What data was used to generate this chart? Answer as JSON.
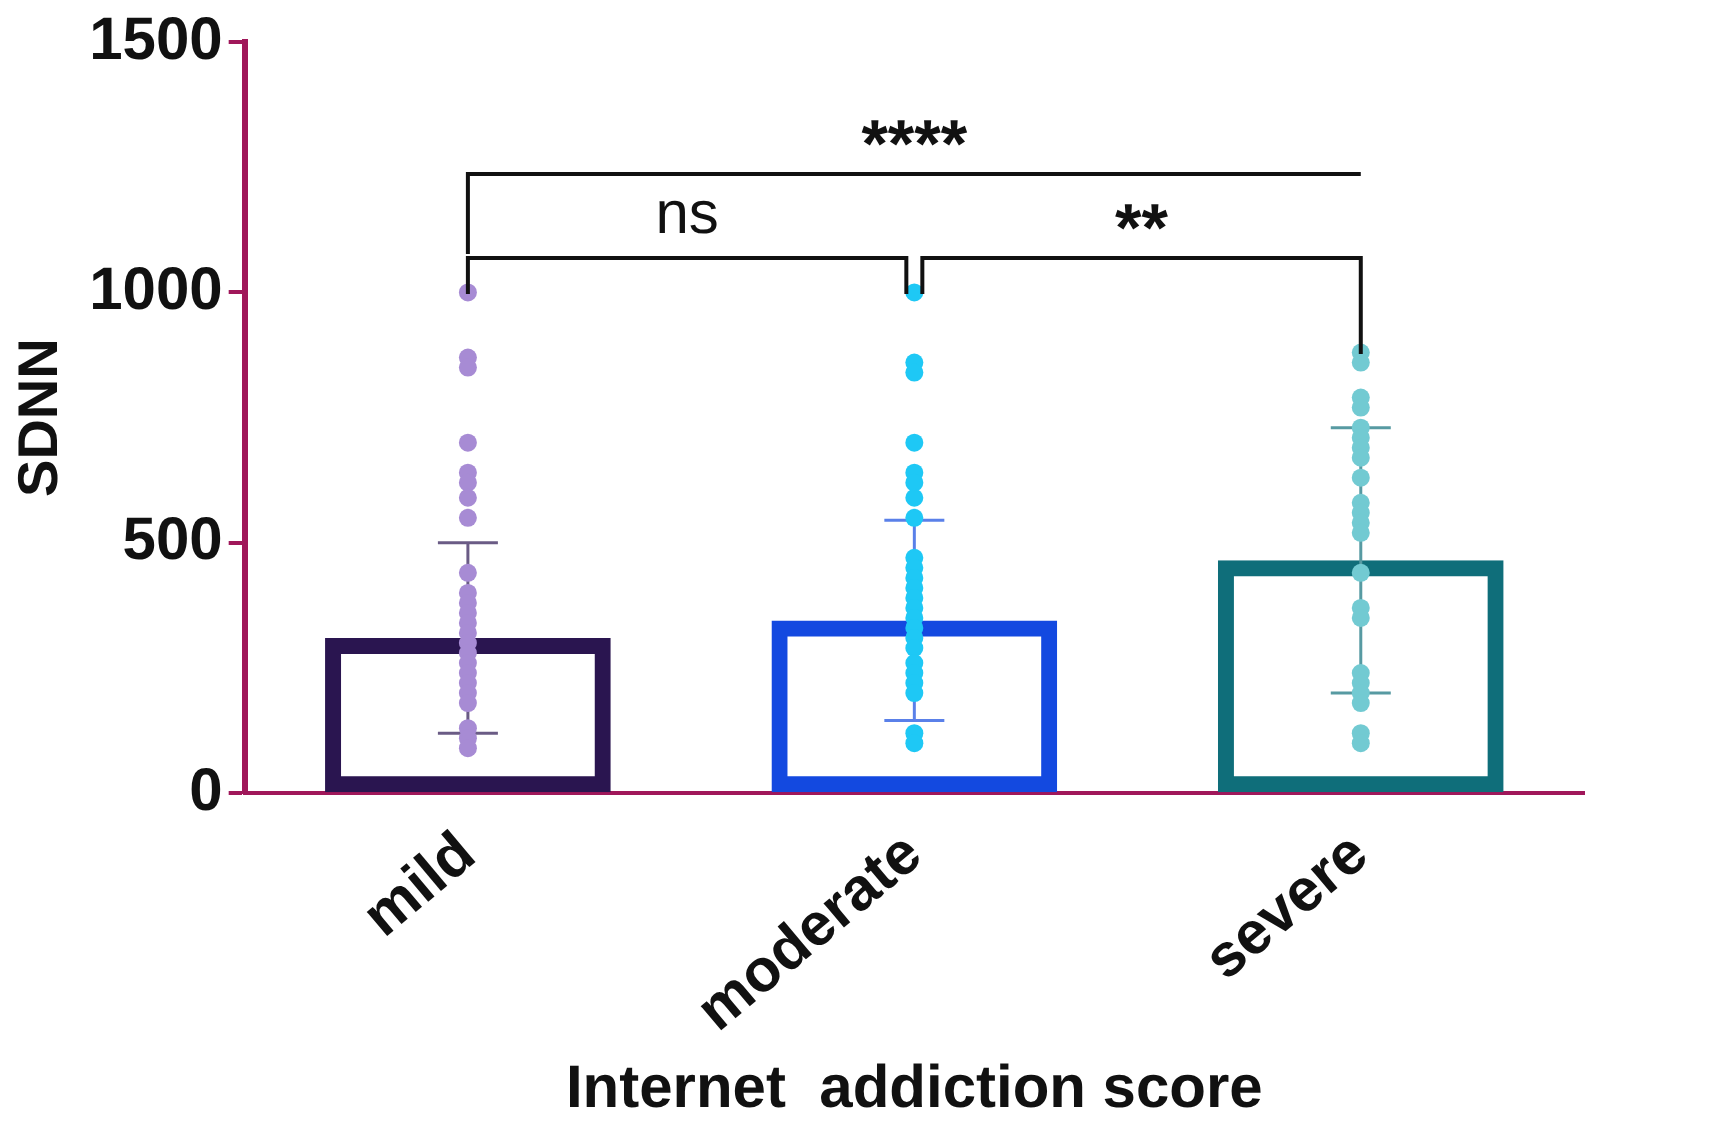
{
  "chart_data": {
    "type": "bar",
    "xlabel": "Internet  addiction score",
    "ylabel": "SDNN",
    "categories": [
      "mild",
      "moderate",
      "severe"
    ],
    "ylim": [
      0,
      1500
    ],
    "yticks": [
      0,
      500,
      1000,
      1500
    ],
    "annotations": [
      "****",
      "ns",
      "**"
    ],
    "values": [
      310,
      345,
      465
    ],
    "colors": [
      "#2a1550",
      "#1349e0",
      "#0f6e7a"
    ],
    "errors": [
      190,
      200,
      265
    ],
    "series": [
      {
        "type": "scatter",
        "marker": "circle",
        "color": "#a78bd4",
        "x": [
          "mild",
          "mild",
          "mild",
          "mild",
          "mild",
          "mild",
          "mild",
          "mild",
          "mild",
          "mild",
          "mild",
          "mild",
          "mild",
          "mild",
          "mild",
          "mild",
          "mild",
          "mild",
          "mild",
          "mild",
          "mild",
          "mild",
          "mild",
          "mild"
        ],
        "values": [
          1000,
          870,
          850,
          700,
          640,
          620,
          590,
          550,
          440,
          400,
          380,
          360,
          340,
          320,
          300,
          280,
          260,
          240,
          220,
          200,
          180,
          130,
          110,
          90
        ]
      },
      {
        "type": "scatter",
        "marker": "circle",
        "color": "#1ec8f5",
        "x": [
          "moderate",
          "moderate",
          "moderate",
          "moderate",
          "moderate",
          "moderate",
          "moderate",
          "moderate",
          "moderate",
          "moderate",
          "moderate",
          "moderate",
          "moderate",
          "moderate",
          "moderate",
          "moderate",
          "moderate",
          "moderate",
          "moderate",
          "moderate",
          "moderate",
          "moderate",
          "moderate",
          "moderate"
        ],
        "values": [
          1000,
          860,
          840,
          700,
          640,
          620,
          590,
          550,
          470,
          450,
          430,
          410,
          390,
          370,
          350,
          330,
          310,
          290,
          260,
          240,
          220,
          200,
          120,
          100
        ]
      },
      {
        "type": "scatter",
        "marker": "circle",
        "color": "#72cad2",
        "x": [
          "severe",
          "severe",
          "severe",
          "severe",
          "severe",
          "severe",
          "severe",
          "severe",
          "severe",
          "severe",
          "severe",
          "severe",
          "severe",
          "severe",
          "severe",
          "severe",
          "severe",
          "severe",
          "severe",
          "severe",
          "severe",
          "severe"
        ],
        "values": [
          880,
          860,
          790,
          770,
          730,
          710,
          690,
          670,
          630,
          580,
          560,
          540,
          520,
          440,
          370,
          350,
          240,
          220,
          200,
          180,
          120,
          100
        ]
      }
    ]
  }
}
